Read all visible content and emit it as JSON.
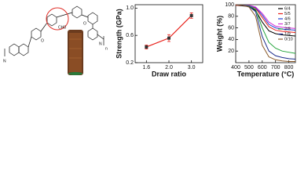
{
  "structure": {
    "labels": [
      "N",
      "N",
      "O",
      "O",
      "CH3",
      "n"
    ]
  },
  "chart_data": [
    {
      "type": "line",
      "xlabel": "Draw ratio",
      "ylabel": "Strength (GPa)",
      "categories": [
        "1.6",
        "2.0",
        "3.0"
      ],
      "values": [
        0.43,
        0.56,
        0.89
      ],
      "errors": [
        0.03,
        0.05,
        0.04
      ],
      "color": "#e8201a",
      "marker_color": "#333333",
      "ylim": [
        0.2,
        1.05
      ],
      "yticks": [
        {
          "value": 0.2,
          "label": "0.2"
        },
        {
          "value": 0.6,
          "label": "0.6"
        },
        {
          "value": 1,
          "label": "1.0"
        }
      ]
    },
    {
      "type": "line",
      "xlabel": "Temperature (°C)",
      "ylabel": "Weight (%)",
      "x": [
        400,
        450,
        500,
        550,
        600,
        650,
        700,
        750,
        800,
        850
      ],
      "xlim": [
        400,
        850
      ],
      "xticks": [
        400,
        500,
        600,
        700,
        800
      ],
      "ylim": [
        0,
        100
      ],
      "yticks": [
        20,
        40,
        60,
        80,
        100
      ],
      "legend": "upper right",
      "series": [
        {
          "name": "6/4",
          "color": "#000000",
          "values": [
            99,
            98,
            97,
            90,
            70,
            55,
            50,
            48,
            47,
            46
          ]
        },
        {
          "name": "5/5",
          "color": "#e8201a",
          "values": [
            99,
            99,
            98,
            94,
            78,
            62,
            56,
            54,
            53,
            52
          ]
        },
        {
          "name": "4/6",
          "color": "#1f3fd6",
          "values": [
            100,
            99,
            98,
            95,
            82,
            66,
            60,
            58,
            57,
            56
          ]
        },
        {
          "name": "3/7",
          "color": "#d42ad4",
          "values": [
            100,
            99,
            99,
            96,
            85,
            70,
            63,
            61,
            60,
            59
          ]
        },
        {
          "name": "2/8",
          "color": "#22a33a",
          "values": [
            100,
            99,
            98,
            92,
            60,
            35,
            25,
            20,
            18,
            16
          ]
        },
        {
          "name": "1/9",
          "color": "#1a2a8a",
          "values": [
            100,
            99,
            97,
            88,
            45,
            20,
            12,
            9,
            7,
            6
          ]
        },
        {
          "name": "0/10",
          "color": "#8a5a2a",
          "values": [
            100,
            99,
            96,
            80,
            30,
            10,
            5,
            3,
            2,
            2
          ]
        }
      ]
    }
  ]
}
